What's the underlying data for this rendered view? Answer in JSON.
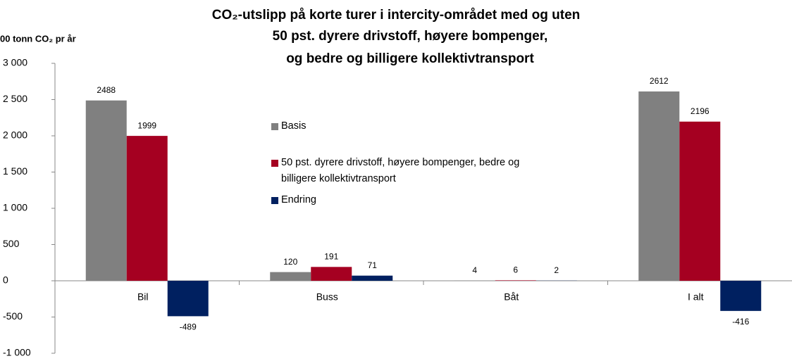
{
  "chart_data": {
    "type": "bar",
    "title": [
      "CO₂-utslipp på korte turer i intercity-området med og uten",
      "50 pst. dyrere drivstoff, høyere bompenger,",
      "og bedre og billigere kollektivtransport"
    ],
    "y_label": "00 tonn CO₂ pr år",
    "categories": [
      "Bil",
      "Buss",
      "Båt",
      "I alt"
    ],
    "series": [
      {
        "name": "Basis",
        "color": "#808080",
        "values": [
          2488,
          120,
          4,
          2612
        ]
      },
      {
        "name": "50 pst. dyrere drivstoff, høyere bompenger, bedre og billigere kollektivtransport",
        "color": "#a50021",
        "values": [
          1999,
          191,
          6,
          2196
        ]
      },
      {
        "name": "Endring",
        "color": "#002060",
        "values": [
          -489,
          71,
          2,
          -416
        ]
      }
    ],
    "ylim": [
      -1000,
      3000
    ],
    "yticks": [
      {
        "value": -1000,
        "label": "-1 000"
      },
      -500,
      0,
      500,
      {
        "value": 1000,
        "label": "1 000"
      },
      {
        "value": 1500,
        "label": "1 500"
      },
      {
        "value": 2000,
        "label": "2 000"
      },
      {
        "value": 2500,
        "label": "2 500"
      },
      {
        "value": 3000,
        "label": "3 000"
      }
    ],
    "legend": "inside-left"
  }
}
